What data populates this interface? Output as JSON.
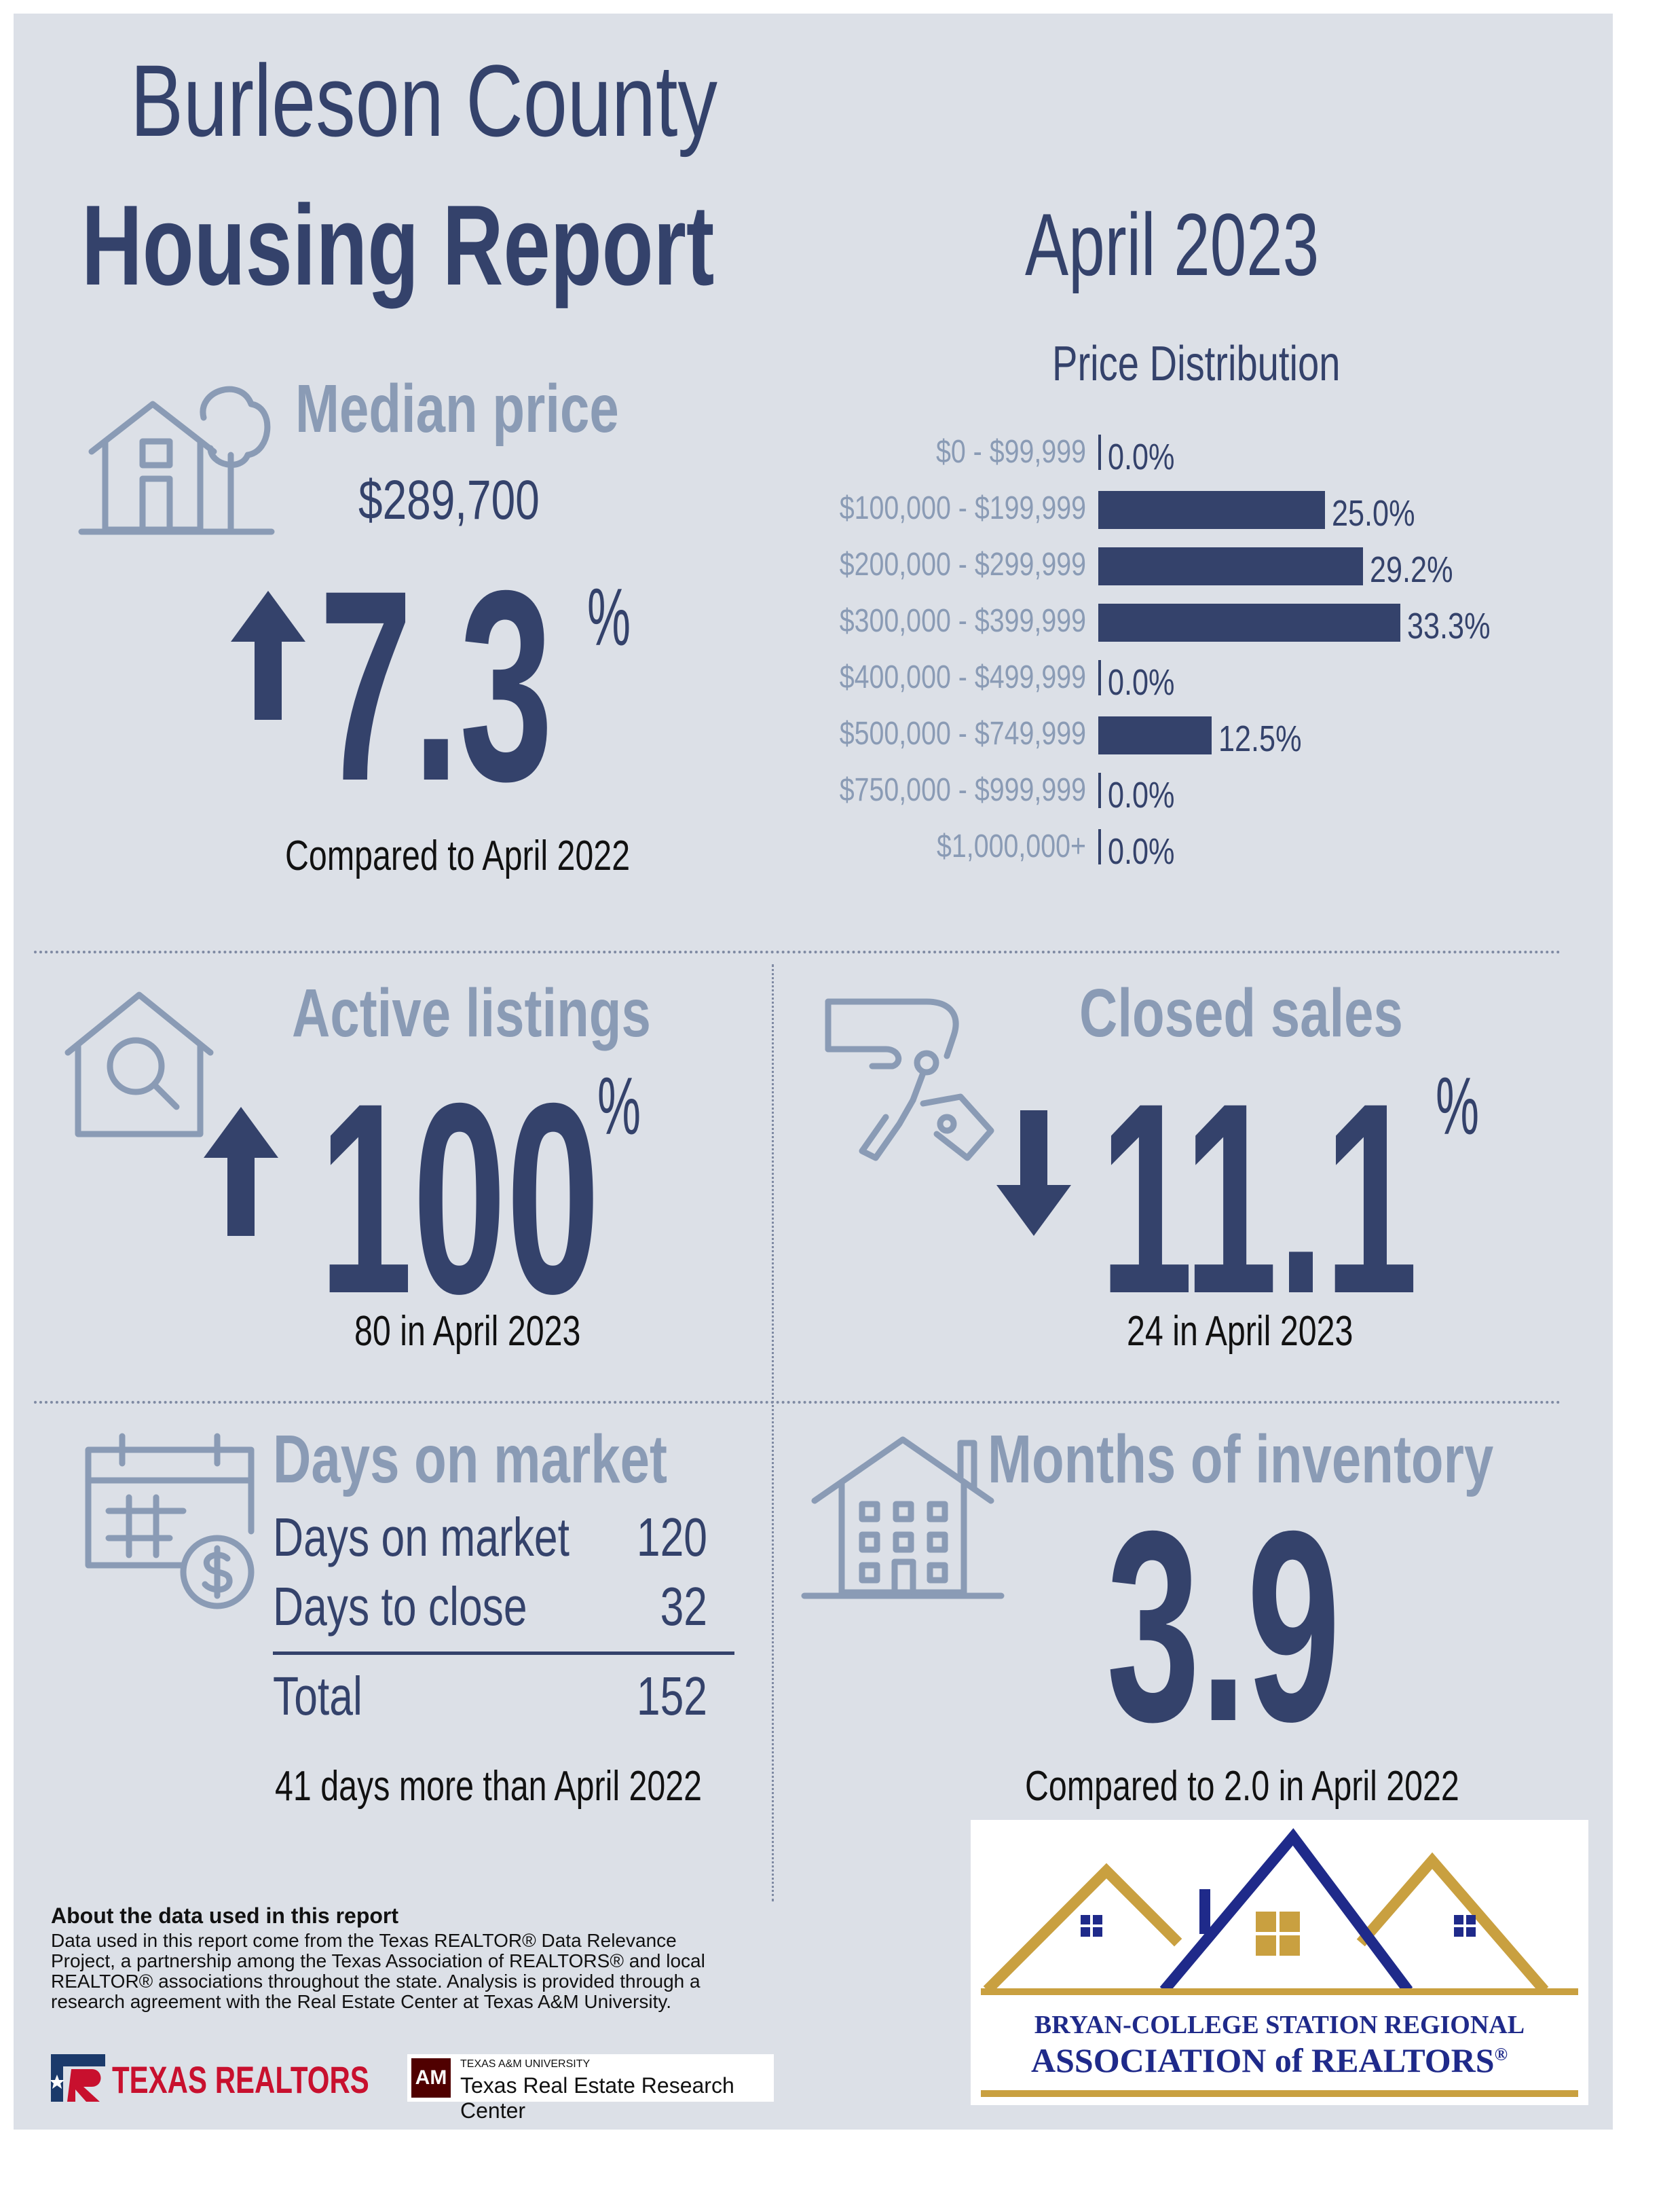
{
  "header": {
    "title_line1": "Burleson County",
    "title_line2": "Housing Report",
    "period": "April 2023"
  },
  "median_price": {
    "heading": "Median price",
    "value": "$289,700",
    "change": "7.3",
    "unit": "%",
    "direction": "up",
    "comparison": "Compared to April 2022",
    "icon": "house-tree-icon"
  },
  "price_distribution": {
    "heading": "Price Distribution"
  },
  "chart_data": {
    "type": "bar",
    "title": "Price Distribution",
    "orientation": "horizontal",
    "categories": [
      "$0 - $99,999",
      "$100,000 - $199,999",
      "$200,000 - $299,999",
      "$300,000 - $399,999",
      "$400,000 - $499,999",
      "$500,000 - $749,999",
      "$750,000 - $999,999",
      "$1,000,000+"
    ],
    "values": [
      0.0,
      25.0,
      29.2,
      33.3,
      0.0,
      12.5,
      0.0,
      0.0
    ],
    "value_labels": [
      "0.0%",
      "25.0%",
      "29.2%",
      "33.3%",
      "0.0%",
      "12.5%",
      "0.0%",
      "0.0%"
    ],
    "grid": false,
    "color": "#34426b"
  },
  "active_listings": {
    "heading": "Active listings",
    "change": "100",
    "unit": "%",
    "direction": "up",
    "caption": "80 in April 2023",
    "icon": "house-search-icon"
  },
  "closed_sales": {
    "heading": "Closed sales",
    "change": "11.1",
    "unit": "%",
    "direction": "down",
    "caption": "24 in April 2023",
    "icon": "hand-keys-icon"
  },
  "days_on_market": {
    "heading": "Days on market",
    "rows": [
      {
        "label": "Days on market",
        "value": "120"
      },
      {
        "label": "Days to close",
        "value": "32"
      }
    ],
    "total_label": "Total",
    "total_value": "152",
    "caption": "41 days more than April 2022",
    "icon": "calendar-dollar-icon"
  },
  "months_inventory": {
    "heading": "Months of inventory",
    "value": "3.9",
    "caption": "Compared to 2.0 in April 2022",
    "icon": "building-icon"
  },
  "about": {
    "heading": "About the data used in this report",
    "text": "Data used in this report come from the Texas REALTOR® Data Relevance Project, a partnership among the Texas Association of REALTORS® and local REALTOR® associations throughout the state. Analysis is provided through a research agreement with the Real Estate Center at Texas A&M University."
  },
  "logos": {
    "texas_realtors": "TEXAS REALTORS",
    "tamu_small": "TEXAS A&M UNIVERSITY",
    "tamu_center": "Texas Real Estate Research Center",
    "assoc_line1": "BRYAN-COLLEGE STATION REGIONAL",
    "assoc_line2": "ASSOCIATION of REALTORS",
    "assoc_mark": "®"
  },
  "colors": {
    "navy": "#34426b",
    "slate": "#8a9bb5",
    "gold": "#c9a040",
    "background": "#dce0e7"
  }
}
